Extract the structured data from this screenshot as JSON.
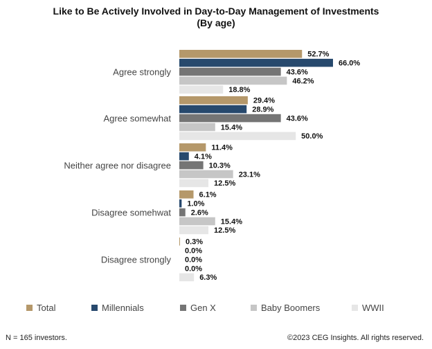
{
  "chart_data": {
    "type": "bar",
    "orientation": "horizontal",
    "title": "Like to Be Actively Involved in Day-to-Day Management of Investments",
    "subtitle": "(By age)",
    "categories": [
      "Agree strongly",
      "Agree somewhat",
      "Neither agree nor disagree",
      "Disagree somehwat",
      "Disagree strongly"
    ],
    "series": [
      {
        "name": "Total",
        "color": "#b5986a",
        "values": [
          52.7,
          29.4,
          11.4,
          6.1,
          0.3
        ],
        "labels": [
          "52.7%",
          "29.4%",
          "11.4%",
          "6.1%",
          "0.3%"
        ]
      },
      {
        "name": "Millennials",
        "color": "#27496d",
        "values": [
          66.0,
          28.9,
          4.1,
          1.0,
          0.0
        ],
        "labels": [
          "66.0%",
          "28.9%",
          "4.1%",
          "1.0%",
          "0.0%"
        ]
      },
      {
        "name": "Gen X",
        "color": "#757575",
        "values": [
          43.6,
          43.6,
          10.3,
          2.6,
          0.0
        ],
        "labels": [
          "43.6%",
          "43.6%",
          "10.3%",
          "2.6%",
          "0.0%"
        ]
      },
      {
        "name": "Baby Boomers",
        "color": "#c6c6c6",
        "values": [
          46.2,
          15.4,
          23.1,
          15.4,
          0.0
        ],
        "labels": [
          "46.2%",
          "15.4%",
          "23.1%",
          "15.4%",
          "0.0%"
        ]
      },
      {
        "name": "WWII",
        "color": "#e6e6e6",
        "values": [
          18.8,
          50.0,
          12.5,
          12.5,
          6.3
        ],
        "labels": [
          "18.8%",
          "50.0%",
          "12.5%",
          "12.5%",
          "6.3%"
        ]
      }
    ],
    "xlim": [
      0,
      100
    ],
    "grid": false,
    "legend_position": "bottom"
  },
  "footer": {
    "note": "N = 165 investors.",
    "copyright": "©2023 CEG Insights. All rights reserved."
  }
}
